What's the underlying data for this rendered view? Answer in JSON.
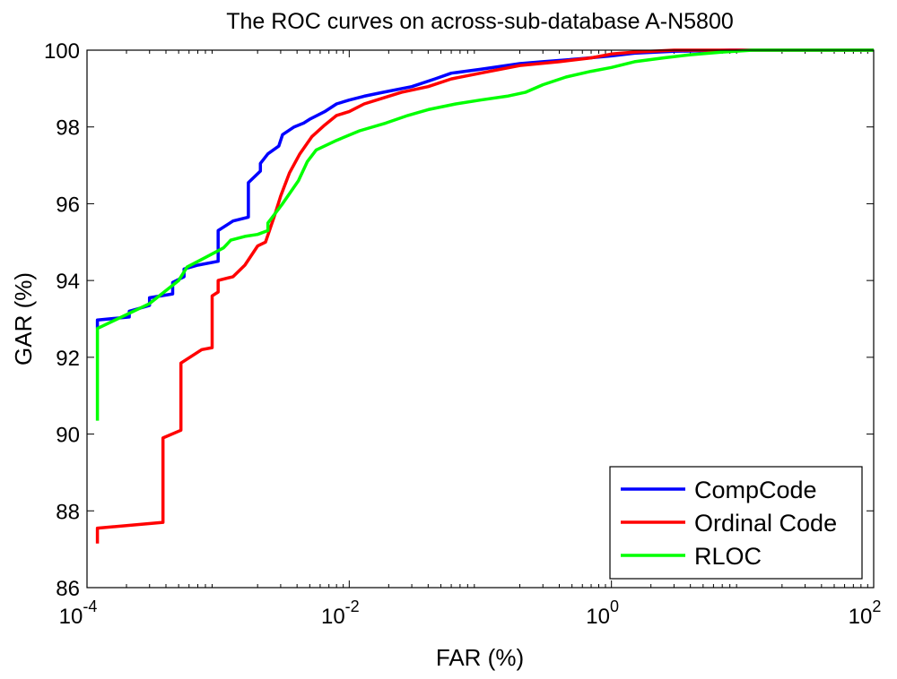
{
  "chart_data": {
    "type": "line",
    "title": "The ROC curves on across-sub-database A-N5800",
    "xlabel": "FAR (%)",
    "ylabel": "GAR (%)",
    "xscale": "log",
    "xlim": [
      0.0001,
      100
    ],
    "ylim": [
      86,
      100
    ],
    "x_ticks": [
      {
        "base": "10",
        "exp": "-4",
        "value": 0.0001
      },
      {
        "base": "10",
        "exp": "-2",
        "value": 0.01
      },
      {
        "base": "10",
        "exp": "0",
        "value": 1
      },
      {
        "base": "10",
        "exp": "2",
        "value": 100
      }
    ],
    "y_ticks": [
      "86",
      "88",
      "90",
      "92",
      "94",
      "96",
      "98",
      "100"
    ],
    "legend_position": "bottom-right",
    "series": [
      {
        "name": "CompCode",
        "color": "#0000ff",
        "points": [
          [
            0.00012,
            92.75
          ],
          [
            0.00012,
            92.97
          ],
          [
            0.00021,
            93.05
          ],
          [
            0.00021,
            93.2
          ],
          [
            0.0003,
            93.35
          ],
          [
            0.0003,
            93.55
          ],
          [
            0.00045,
            93.65
          ],
          [
            0.00045,
            93.95
          ],
          [
            0.00055,
            94.1
          ],
          [
            0.00055,
            94.3
          ],
          [
            0.0007,
            94.4
          ],
          [
            0.001,
            94.5
          ],
          [
            0.001,
            95.3
          ],
          [
            0.0013,
            95.55
          ],
          [
            0.0017,
            95.65
          ],
          [
            0.0017,
            96.55
          ],
          [
            0.0021,
            96.85
          ],
          [
            0.0021,
            97.05
          ],
          [
            0.0024,
            97.3
          ],
          [
            0.0029,
            97.5
          ],
          [
            0.0031,
            97.8
          ],
          [
            0.0038,
            98.0
          ],
          [
            0.0045,
            98.1
          ],
          [
            0.005,
            98.2
          ],
          [
            0.0065,
            98.4
          ],
          [
            0.008,
            98.6
          ],
          [
            0.01,
            98.7
          ],
          [
            0.013,
            98.8
          ],
          [
            0.018,
            98.9
          ],
          [
            0.03,
            99.05
          ],
          [
            0.045,
            99.25
          ],
          [
            0.06,
            99.4
          ],
          [
            0.1,
            99.5
          ],
          [
            0.2,
            99.65
          ],
          [
            0.3,
            99.7
          ],
          [
            0.6,
            99.78
          ],
          [
            1.0,
            99.85
          ],
          [
            1.5,
            99.92
          ],
          [
            3.0,
            99.97
          ],
          [
            8.0,
            100.0
          ],
          [
            100,
            100.0
          ]
        ]
      },
      {
        "name": "Ordinal Code",
        "color": "#ff0000",
        "points": [
          [
            0.00012,
            87.15
          ],
          [
            0.00012,
            87.55
          ],
          [
            0.00038,
            87.7
          ],
          [
            0.00038,
            89.9
          ],
          [
            0.00052,
            90.1
          ],
          [
            0.00052,
            91.85
          ],
          [
            0.00075,
            92.2
          ],
          [
            0.0009,
            92.25
          ],
          [
            0.0009,
            93.6
          ],
          [
            0.001,
            93.7
          ],
          [
            0.001,
            94.0
          ],
          [
            0.0013,
            94.1
          ],
          [
            0.0016,
            94.4
          ],
          [
            0.002,
            94.9
          ],
          [
            0.0023,
            95.0
          ],
          [
            0.0027,
            95.7
          ],
          [
            0.003,
            96.2
          ],
          [
            0.0035,
            96.8
          ],
          [
            0.0042,
            97.3
          ],
          [
            0.0052,
            97.75
          ],
          [
            0.0065,
            98.05
          ],
          [
            0.008,
            98.3
          ],
          [
            0.01,
            98.4
          ],
          [
            0.013,
            98.6
          ],
          [
            0.018,
            98.75
          ],
          [
            0.025,
            98.9
          ],
          [
            0.04,
            99.05
          ],
          [
            0.06,
            99.25
          ],
          [
            0.1,
            99.4
          ],
          [
            0.2,
            99.6
          ],
          [
            0.4,
            99.7
          ],
          [
            0.7,
            99.8
          ],
          [
            1.0,
            99.9
          ],
          [
            1.5,
            99.95
          ],
          [
            3.0,
            100.0
          ],
          [
            100,
            100.0
          ]
        ]
      },
      {
        "name": "RLOC",
        "color": "#00ff00",
        "points": [
          [
            0.00012,
            90.35
          ],
          [
            0.00012,
            92.75
          ],
          [
            0.0003,
            93.4
          ],
          [
            0.0005,
            94.0
          ],
          [
            0.00058,
            94.35
          ],
          [
            0.0008,
            94.6
          ],
          [
            0.0011,
            94.85
          ],
          [
            0.00125,
            95.05
          ],
          [
            0.0016,
            95.15
          ],
          [
            0.002,
            95.2
          ],
          [
            0.0024,
            95.3
          ],
          [
            0.0024,
            95.5
          ],
          [
            0.0031,
            96.0
          ],
          [
            0.0041,
            96.6
          ],
          [
            0.0048,
            97.1
          ],
          [
            0.0056,
            97.4
          ],
          [
            0.008,
            97.65
          ],
          [
            0.012,
            97.9
          ],
          [
            0.019,
            98.1
          ],
          [
            0.028,
            98.3
          ],
          [
            0.04,
            98.45
          ],
          [
            0.065,
            98.6
          ],
          [
            0.1,
            98.7
          ],
          [
            0.16,
            98.8
          ],
          [
            0.22,
            98.9
          ],
          [
            0.3,
            99.1
          ],
          [
            0.45,
            99.3
          ],
          [
            0.7,
            99.45
          ],
          [
            1.0,
            99.55
          ],
          [
            1.5,
            99.7
          ],
          [
            2.5,
            99.8
          ],
          [
            4.0,
            99.88
          ],
          [
            7.0,
            99.95
          ],
          [
            12.0,
            100.0
          ],
          [
            100,
            100.0
          ]
        ]
      }
    ]
  }
}
